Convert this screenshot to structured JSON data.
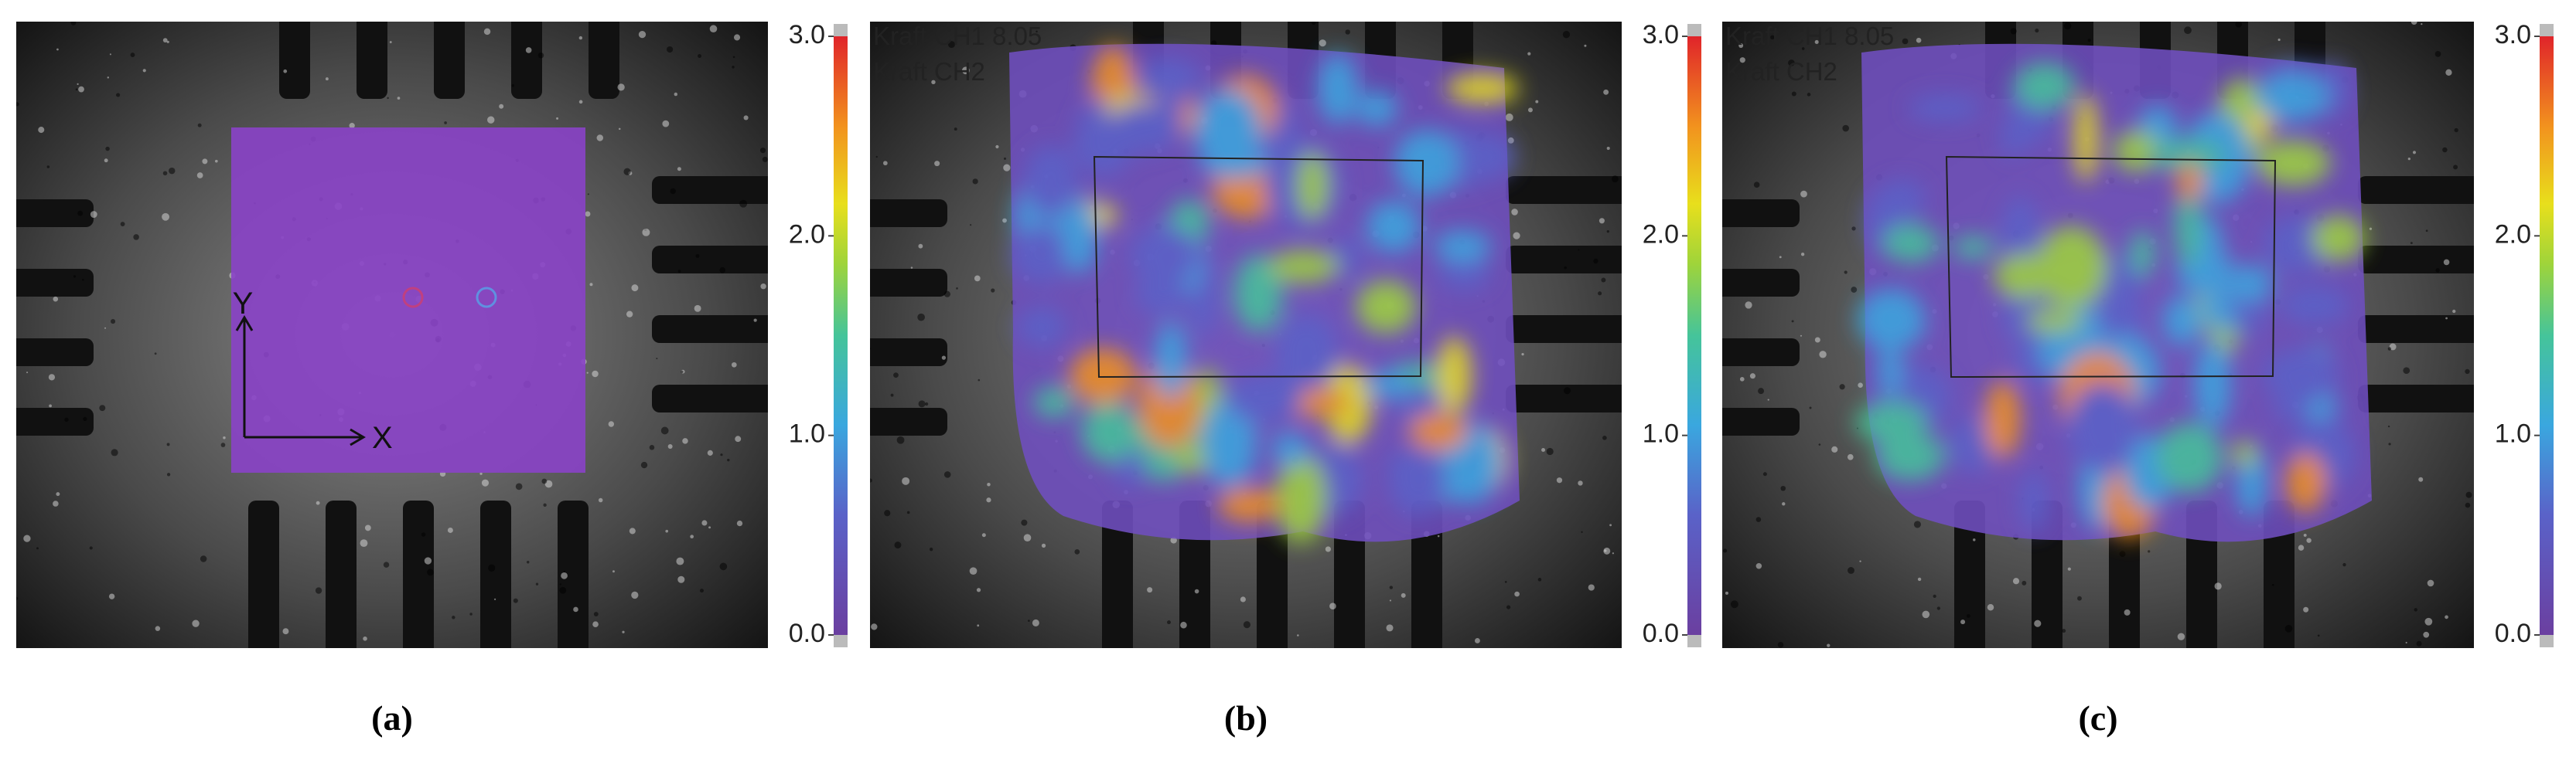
{
  "panels": [
    {
      "label": "(a)",
      "axes": {
        "x": "X",
        "y": "Y"
      },
      "colorbar": {
        "lim": [
          0,
          3
        ],
        "ticks": [
          {
            "value": 3,
            "label": "3.0"
          },
          {
            "value": 2,
            "label": "2.0"
          },
          {
            "value": 1,
            "label": "1.0"
          },
          {
            "value": 0,
            "label": "0.0"
          }
        ]
      }
    },
    {
      "label": "(b)",
      "overlay_text": [
        "Kraft CH1 8.05",
        "Kraft CH2"
      ],
      "colorbar": {
        "lim": [
          0,
          3
        ],
        "ticks": [
          {
            "value": 3,
            "label": "3.0"
          },
          {
            "value": 2,
            "label": "2.0"
          },
          {
            "value": 1,
            "label": "1.0"
          },
          {
            "value": 0,
            "label": "0.0"
          }
        ]
      }
    },
    {
      "label": "(c)",
      "overlay_text": [
        "Kraft CH1 8.05",
        "Kraft CH2"
      ],
      "colorbar": {
        "lim": [
          0,
          3
        ],
        "ticks": [
          {
            "value": 3,
            "label": "3.0"
          },
          {
            "value": 2,
            "label": "2.0"
          },
          {
            "value": 1,
            "label": "1.0"
          },
          {
            "value": 0,
            "label": "0.0"
          }
        ]
      }
    }
  ]
}
